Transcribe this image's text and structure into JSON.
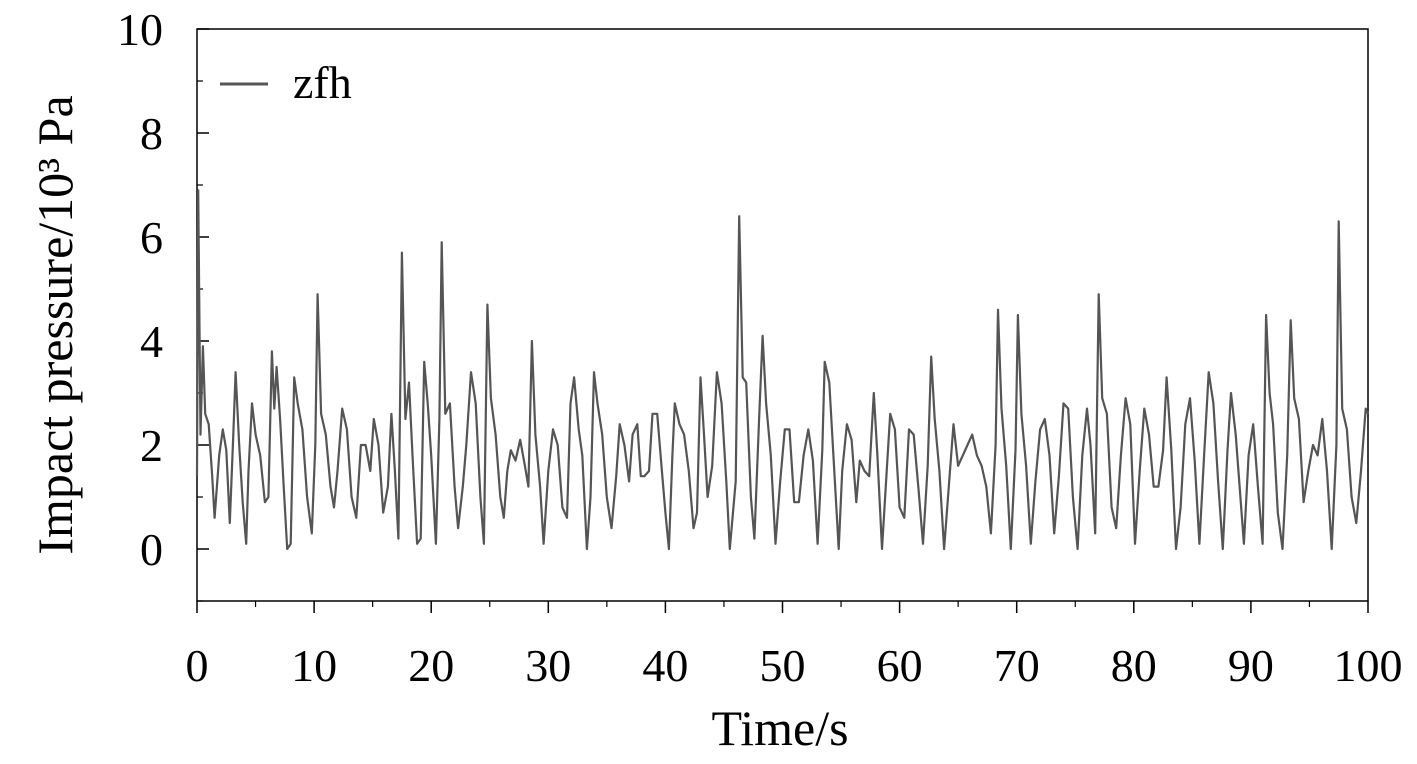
{
  "chart_data": {
    "type": "line",
    "xlabel": "Time/s",
    "ylabel": "Impact pressure/10³ Pa",
    "xlim": [
      0,
      100
    ],
    "ylim": [
      -1,
      10
    ],
    "x_ticks": [
      0,
      10,
      20,
      30,
      40,
      50,
      60,
      70,
      80,
      90,
      100
    ],
    "y_ticks": [
      0,
      2,
      4,
      6,
      8,
      10
    ],
    "x_tick_labels": [
      "0",
      "10",
      "20",
      "30",
      "40",
      "50",
      "60",
      "70",
      "80",
      "90",
      "100"
    ],
    "y_tick_labels": [
      "0",
      "2",
      "4",
      "6",
      "8",
      "10"
    ],
    "grid": false,
    "legend_position": "top-left",
    "series_color": "#555555",
    "series": [
      {
        "name": "zfh",
        "points": [
          [
            0.0,
            1.4
          ],
          [
            0.1,
            6.9
          ],
          [
            0.3,
            2.2
          ],
          [
            0.5,
            3.9
          ],
          [
            0.7,
            2.6
          ],
          [
            1.0,
            2.4
          ],
          [
            1.3,
            1.4
          ],
          [
            1.5,
            0.6
          ],
          [
            1.9,
            1.8
          ],
          [
            2.2,
            2.3
          ],
          [
            2.5,
            1.9
          ],
          [
            2.8,
            0.5
          ],
          [
            3.1,
            2.2
          ],
          [
            3.3,
            3.4
          ],
          [
            3.6,
            2.0
          ],
          [
            3.9,
            0.9
          ],
          [
            4.2,
            0.1
          ],
          [
            4.4,
            1.5
          ],
          [
            4.7,
            2.8
          ],
          [
            5.0,
            2.2
          ],
          [
            5.4,
            1.8
          ],
          [
            5.8,
            0.9
          ],
          [
            6.1,
            1.0
          ],
          [
            6.4,
            3.8
          ],
          [
            6.6,
            2.7
          ],
          [
            6.8,
            3.5
          ],
          [
            7.1,
            2.5
          ],
          [
            7.4,
            1.2
          ],
          [
            7.7,
            0.0
          ],
          [
            8.0,
            0.1
          ],
          [
            8.3,
            3.3
          ],
          [
            8.6,
            2.8
          ],
          [
            9.0,
            2.3
          ],
          [
            9.4,
            1.0
          ],
          [
            9.8,
            0.3
          ],
          [
            10.1,
            2.0
          ],
          [
            10.3,
            4.9
          ],
          [
            10.6,
            2.6
          ],
          [
            11.0,
            2.2
          ],
          [
            11.4,
            1.2
          ],
          [
            11.7,
            0.8
          ],
          [
            12.0,
            1.5
          ],
          [
            12.4,
            2.7
          ],
          [
            12.8,
            2.3
          ],
          [
            13.2,
            1.0
          ],
          [
            13.6,
            0.6
          ],
          [
            14.0,
            2.0
          ],
          [
            14.4,
            2.0
          ],
          [
            14.8,
            1.5
          ],
          [
            15.1,
            2.5
          ],
          [
            15.5,
            2.0
          ],
          [
            15.9,
            0.7
          ],
          [
            16.3,
            1.2
          ],
          [
            16.6,
            2.6
          ],
          [
            16.9,
            1.5
          ],
          [
            17.2,
            0.2
          ],
          [
            17.5,
            5.7
          ],
          [
            17.8,
            2.5
          ],
          [
            18.1,
            3.2
          ],
          [
            18.4,
            1.8
          ],
          [
            18.8,
            0.1
          ],
          [
            19.1,
            0.2
          ],
          [
            19.4,
            3.6
          ],
          [
            19.7,
            2.8
          ],
          [
            20.0,
            1.8
          ],
          [
            20.4,
            0.1
          ],
          [
            20.7,
            2.5
          ],
          [
            20.9,
            5.9
          ],
          [
            21.2,
            2.6
          ],
          [
            21.6,
            2.8
          ],
          [
            22.0,
            1.2
          ],
          [
            22.3,
            0.4
          ],
          [
            22.7,
            1.2
          ],
          [
            23.0,
            2.0
          ],
          [
            23.4,
            3.4
          ],
          [
            23.8,
            2.8
          ],
          [
            24.2,
            1.0
          ],
          [
            24.5,
            0.1
          ],
          [
            24.8,
            4.7
          ],
          [
            25.1,
            2.9
          ],
          [
            25.5,
            2.2
          ],
          [
            25.9,
            1.0
          ],
          [
            26.2,
            0.6
          ],
          [
            26.5,
            1.5
          ],
          [
            26.8,
            1.9
          ],
          [
            27.2,
            1.7
          ],
          [
            27.6,
            2.1
          ],
          [
            28.0,
            1.6
          ],
          [
            28.3,
            1.2
          ],
          [
            28.6,
            4.0
          ],
          [
            28.9,
            2.2
          ],
          [
            29.3,
            1.2
          ],
          [
            29.6,
            0.1
          ],
          [
            30.0,
            1.5
          ],
          [
            30.4,
            2.3
          ],
          [
            30.8,
            2.0
          ],
          [
            31.2,
            0.8
          ],
          [
            31.6,
            0.6
          ],
          [
            31.9,
            2.8
          ],
          [
            32.2,
            3.3
          ],
          [
            32.6,
            2.3
          ],
          [
            32.9,
            1.8
          ],
          [
            33.3,
            0.0
          ],
          [
            33.6,
            1.0
          ],
          [
            33.9,
            3.4
          ],
          [
            34.2,
            2.8
          ],
          [
            34.6,
            2.2
          ],
          [
            35.0,
            1.0
          ],
          [
            35.4,
            0.4
          ],
          [
            35.8,
            1.4
          ],
          [
            36.1,
            2.4
          ],
          [
            36.5,
            2.0
          ],
          [
            36.9,
            1.3
          ],
          [
            37.2,
            2.2
          ],
          [
            37.6,
            2.4
          ],
          [
            37.9,
            1.4
          ],
          [
            38.2,
            1.4
          ],
          [
            38.6,
            1.5
          ],
          [
            38.9,
            2.6
          ],
          [
            39.3,
            2.6
          ],
          [
            39.7,
            1.5
          ],
          [
            40.0,
            0.7
          ],
          [
            40.3,
            0.0
          ],
          [
            40.6,
            1.8
          ],
          [
            40.8,
            2.8
          ],
          [
            41.2,
            2.4
          ],
          [
            41.6,
            2.2
          ],
          [
            42.0,
            1.5
          ],
          [
            42.4,
            0.4
          ],
          [
            42.7,
            0.7
          ],
          [
            43.0,
            3.3
          ],
          [
            43.3,
            2.2
          ],
          [
            43.6,
            1.0
          ],
          [
            44.0,
            1.6
          ],
          [
            44.4,
            3.4
          ],
          [
            44.8,
            2.8
          ],
          [
            45.2,
            1.3
          ],
          [
            45.5,
            0.0
          ],
          [
            46.0,
            1.3
          ],
          [
            46.3,
            6.4
          ],
          [
            46.6,
            3.3
          ],
          [
            46.9,
            3.2
          ],
          [
            47.3,
            1.0
          ],
          [
            47.6,
            0.2
          ],
          [
            48.0,
            2.5
          ],
          [
            48.3,
            4.1
          ],
          [
            48.6,
            2.8
          ],
          [
            49.0,
            1.8
          ],
          [
            49.4,
            0.1
          ],
          [
            49.8,
            1.3
          ],
          [
            50.2,
            2.3
          ],
          [
            50.6,
            2.3
          ],
          [
            51.0,
            0.9
          ],
          [
            51.4,
            0.9
          ],
          [
            51.8,
            1.8
          ],
          [
            52.2,
            2.3
          ],
          [
            52.6,
            1.7
          ],
          [
            53.0,
            0.1
          ],
          [
            53.4,
            1.9
          ],
          [
            53.6,
            3.6
          ],
          [
            54.0,
            3.2
          ],
          [
            54.4,
            1.6
          ],
          [
            54.8,
            0.0
          ],
          [
            55.1,
            1.5
          ],
          [
            55.5,
            2.4
          ],
          [
            55.9,
            2.1
          ],
          [
            56.3,
            0.9
          ],
          [
            56.6,
            1.7
          ],
          [
            57.0,
            1.5
          ],
          [
            57.4,
            1.4
          ],
          [
            57.8,
            3.0
          ],
          [
            58.1,
            1.8
          ],
          [
            58.5,
            0.0
          ],
          [
            58.9,
            1.5
          ],
          [
            59.2,
            2.6
          ],
          [
            59.6,
            2.3
          ],
          [
            60.0,
            0.8
          ],
          [
            60.4,
            0.6
          ],
          [
            60.8,
            2.3
          ],
          [
            61.2,
            2.2
          ],
          [
            61.6,
            1.2
          ],
          [
            62.0,
            0.1
          ],
          [
            62.4,
            1.6
          ],
          [
            62.7,
            3.7
          ],
          [
            63.0,
            2.5
          ],
          [
            63.4,
            1.5
          ],
          [
            63.8,
            0.0
          ],
          [
            64.2,
            1.2
          ],
          [
            64.6,
            2.4
          ],
          [
            65.0,
            1.6
          ],
          [
            65.4,
            1.8
          ],
          [
            65.8,
            2.0
          ],
          [
            66.2,
            2.2
          ],
          [
            66.6,
            1.8
          ],
          [
            67.0,
            1.6
          ],
          [
            67.4,
            1.2
          ],
          [
            67.8,
            0.3
          ],
          [
            68.2,
            2.0
          ],
          [
            68.4,
            4.6
          ],
          [
            68.7,
            2.7
          ],
          [
            69.1,
            1.6
          ],
          [
            69.5,
            0.0
          ],
          [
            69.9,
            1.9
          ],
          [
            70.1,
            4.5
          ],
          [
            70.4,
            2.6
          ],
          [
            70.8,
            1.6
          ],
          [
            71.2,
            0.1
          ],
          [
            71.6,
            1.3
          ],
          [
            72.0,
            2.3
          ],
          [
            72.4,
            2.5
          ],
          [
            72.8,
            1.8
          ],
          [
            73.2,
            0.3
          ],
          [
            73.6,
            1.4
          ],
          [
            74.0,
            2.8
          ],
          [
            74.4,
            2.7
          ],
          [
            74.8,
            1.0
          ],
          [
            75.2,
            0.0
          ],
          [
            75.6,
            1.8
          ],
          [
            76.0,
            2.7
          ],
          [
            76.3,
            2.0
          ],
          [
            76.7,
            0.3
          ],
          [
            77.0,
            4.9
          ],
          [
            77.3,
            2.9
          ],
          [
            77.7,
            2.6
          ],
          [
            78.1,
            0.8
          ],
          [
            78.5,
            0.4
          ],
          [
            78.9,
            1.8
          ],
          [
            79.3,
            2.9
          ],
          [
            79.7,
            2.4
          ],
          [
            80.1,
            0.1
          ],
          [
            80.5,
            1.5
          ],
          [
            80.9,
            2.7
          ],
          [
            81.3,
            2.2
          ],
          [
            81.7,
            1.2
          ],
          [
            82.1,
            1.2
          ],
          [
            82.5,
            1.9
          ],
          [
            82.8,
            3.3
          ],
          [
            83.2,
            1.9
          ],
          [
            83.6,
            0.0
          ],
          [
            84.0,
            0.8
          ],
          [
            84.4,
            2.4
          ],
          [
            84.8,
            2.9
          ],
          [
            85.2,
            1.7
          ],
          [
            85.6,
            0.1
          ],
          [
            86.0,
            1.8
          ],
          [
            86.4,
            3.4
          ],
          [
            86.8,
            2.8
          ],
          [
            87.2,
            1.3
          ],
          [
            87.6,
            0.0
          ],
          [
            88.0,
            1.9
          ],
          [
            88.3,
            3.0
          ],
          [
            88.7,
            2.2
          ],
          [
            89.1,
            1.0
          ],
          [
            89.4,
            0.1
          ],
          [
            89.8,
            1.8
          ],
          [
            90.2,
            2.4
          ],
          [
            90.6,
            1.2
          ],
          [
            91.0,
            0.1
          ],
          [
            91.3,
            4.5
          ],
          [
            91.6,
            3.0
          ],
          [
            91.9,
            2.4
          ],
          [
            92.3,
            0.7
          ],
          [
            92.7,
            0.0
          ],
          [
            93.1,
            1.8
          ],
          [
            93.4,
            4.4
          ],
          [
            93.7,
            2.9
          ],
          [
            94.1,
            2.5
          ],
          [
            94.5,
            0.9
          ],
          [
            94.9,
            1.5
          ],
          [
            95.3,
            2.0
          ],
          [
            95.7,
            1.8
          ],
          [
            96.1,
            2.5
          ],
          [
            96.5,
            1.5
          ],
          [
            96.9,
            0.0
          ],
          [
            97.3,
            2.0
          ],
          [
            97.5,
            6.3
          ],
          [
            97.8,
            2.7
          ],
          [
            98.2,
            2.3
          ],
          [
            98.6,
            1.0
          ],
          [
            99.0,
            0.5
          ],
          [
            99.4,
            1.5
          ],
          [
            99.8,
            2.7
          ],
          [
            100.0,
            2.6
          ]
        ]
      }
    ]
  }
}
